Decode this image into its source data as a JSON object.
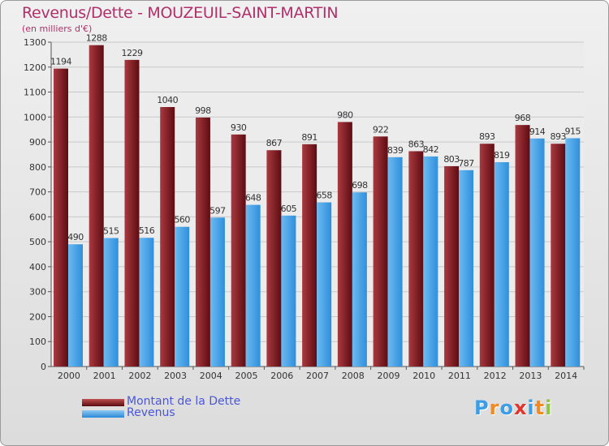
{
  "chart_data": {
    "type": "bar",
    "title": "Revenus/Dette - MOUZEUIL-SAINT-MARTIN",
    "subtitle": "(en milliers d'€)",
    "categories": [
      "2000",
      "2001",
      "2002",
      "2003",
      "2004",
      "2005",
      "2006",
      "2007",
      "2008",
      "2009",
      "2010",
      "2011",
      "2012",
      "2013",
      "2014"
    ],
    "series": [
      {
        "name": "Montant de la Dette",
        "color": "#7a1a20",
        "values": [
          1194,
          1288,
          1229,
          1040,
          998,
          930,
          867,
          891,
          980,
          922,
          863,
          803,
          893,
          968,
          893
        ]
      },
      {
        "name": "Revenus",
        "color": "#3d9ee6",
        "values": [
          490,
          515,
          516,
          560,
          597,
          648,
          605,
          658,
          698,
          839,
          842,
          787,
          819,
          914,
          915
        ]
      }
    ],
    "yticks": [
      0,
      100,
      200,
      300,
      400,
      500,
      600,
      700,
      800,
      900,
      1000,
      1100,
      1200,
      1300
    ],
    "ylim": [
      0,
      1300
    ],
    "grid": true,
    "legend_position": "bottom-left"
  },
  "logo": {
    "text": "Proxiti",
    "colors": [
      "#3d9ee6",
      "#f08a24",
      "#3d9ee6",
      "#e2342d",
      "#3d9ee6",
      "#f08a24",
      "#8dc63f"
    ]
  }
}
